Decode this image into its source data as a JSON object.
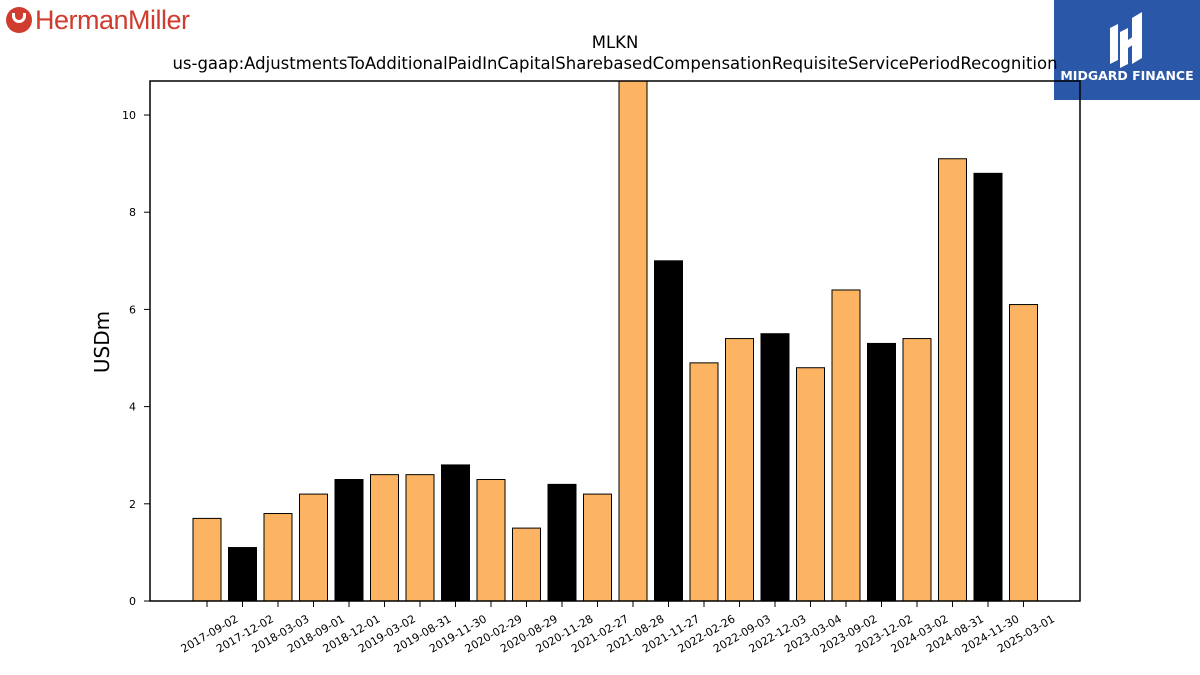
{
  "logos": {
    "left": {
      "text": "HermanMiller",
      "color": "#d03c2e"
    },
    "right": {
      "text": "MIDGARD FINANCE",
      "background": "#2b57a8"
    }
  },
  "chart_data": {
    "type": "bar",
    "title": "MLKN",
    "subtitle": "us-gaap:AdjustmentsToAdditionalPaidInCapitalSharebasedCompensationRequisiteServicePeriodRecognition",
    "xlabel": "",
    "ylabel": "USDm",
    "ylim": [
      0,
      10.7
    ],
    "yticks": [
      0,
      2,
      4,
      6,
      8,
      10
    ],
    "grid": false,
    "colors": {
      "orange": "#fdb462",
      "black": "#000000"
    },
    "categories": [
      "2017-09-02",
      "2017-12-02",
      "2018-03-03",
      "2018-09-01",
      "2018-12-01",
      "2019-03-02",
      "2019-08-31",
      "2019-11-30",
      "2020-02-29",
      "2020-08-29",
      "2020-11-28",
      "2021-02-27",
      "2021-08-28",
      "2021-11-27",
      "2022-02-26",
      "2022-09-03",
      "2022-12-03",
      "2023-03-04",
      "2023-09-02",
      "2023-12-02",
      "2024-03-02",
      "2024-08-31",
      "2024-11-30",
      "2025-03-01"
    ],
    "values": [
      1.7,
      1.1,
      1.8,
      2.2,
      2.5,
      2.6,
      2.6,
      2.8,
      2.5,
      1.5,
      2.4,
      2.2,
      10.7,
      7.0,
      4.9,
      5.4,
      5.5,
      4.8,
      6.4,
      5.3,
      5.4,
      9.1,
      8.8,
      6.1
    ],
    "bar_colors": [
      "orange",
      "black",
      "orange",
      "orange",
      "black",
      "orange",
      "orange",
      "black",
      "orange",
      "orange",
      "black",
      "orange",
      "orange",
      "black",
      "orange",
      "orange",
      "black",
      "orange",
      "orange",
      "black",
      "orange",
      "orange",
      "black",
      "orange"
    ]
  }
}
